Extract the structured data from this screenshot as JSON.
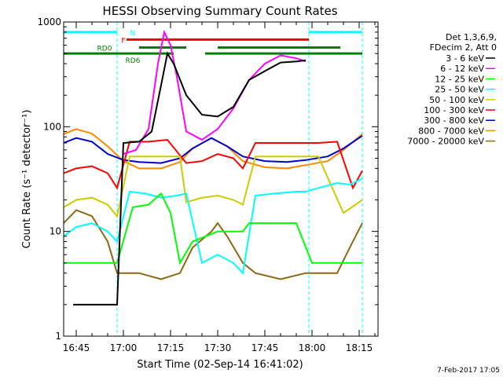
{
  "chart_data": {
    "type": "line",
    "title": "HESSI Observing Summary Count Rates",
    "xlabel": "Start Time (02-Sep-14 16:41:02)",
    "ylabel": "Count Rate (s⁻¹ detector⁻¹)",
    "y_scale": "log",
    "ylim": [
      1,
      1000
    ],
    "xlim": [
      "16:41",
      "18:21"
    ],
    "x_ticks": [
      "16:45",
      "17:00",
      "17:15",
      "17:30",
      "17:45",
      "18:00",
      "18:15"
    ],
    "y_ticks": [
      "1",
      "10",
      "100",
      "1000"
    ],
    "grid": false,
    "legend_position": "right",
    "legend_header": [
      "Det 1,3,6,9,",
      "FDecim 2, Att 0"
    ],
    "footer_date": "7-Feb-2017 17:05",
    "series": [
      {
        "name": "3 - 6 keV",
        "color": "#000000",
        "x": [
          "16:44",
          "16:58",
          "17:00",
          "17:05",
          "17:09",
          "17:12",
          "17:14",
          "17:16",
          "17:20",
          "17:25",
          "17:30",
          "17:35",
          "17:40",
          "17:45",
          "17:50",
          "17:55",
          "17:58"
        ],
        "values": [
          2,
          2,
          70,
          72,
          90,
          250,
          500,
          400,
          200,
          130,
          125,
          155,
          280,
          340,
          410,
          420,
          430
        ]
      },
      {
        "name": "6 - 12 keV",
        "color": "#ff00ff",
        "x": [
          "17:00",
          "17:04",
          "17:08",
          "17:11",
          "17:13",
          "17:15",
          "17:17",
          "17:20",
          "17:25",
          "17:30",
          "17:35",
          "17:40",
          "17:45",
          "17:50",
          "17:55",
          "17:58"
        ],
        "values": [
          55,
          60,
          95,
          400,
          800,
          600,
          300,
          90,
          75,
          95,
          150,
          280,
          400,
          480,
          450,
          420
        ]
      },
      {
        "name": "12 - 25 keV",
        "color": "#00ff00",
        "x": [
          "16:41",
          "16:55",
          "16:58",
          "17:03",
          "17:08",
          "17:12",
          "17:15",
          "17:18",
          "17:22",
          "17:30",
          "17:38",
          "17:40",
          "17:45",
          "17:55",
          "18:00",
          "18:03",
          "18:08",
          "18:13",
          "18:16"
        ],
        "values": [
          5,
          5,
          5,
          17,
          18,
          23,
          15,
          5,
          8,
          10,
          10,
          12,
          12,
          12,
          5,
          5,
          5,
          5,
          5
        ]
      },
      {
        "name": "25 - 50 keV",
        "color": "#00ffff",
        "x": [
          "16:41",
          "16:45",
          "16:50",
          "16:55",
          "16:58",
          "17:02",
          "17:07",
          "17:12",
          "17:17",
          "17:20",
          "17:25",
          "17:30",
          "17:35",
          "17:38",
          "17:42",
          "17:48",
          "17:55",
          "17:58",
          "18:02",
          "18:08",
          "18:12",
          "18:16"
        ],
        "values": [
          9,
          11,
          12,
          10,
          8,
          24,
          23,
          21,
          22,
          23,
          5,
          6,
          5,
          4,
          22,
          23,
          24,
          24,
          26,
          29,
          28,
          32
        ]
      },
      {
        "name": "50 - 100 keV",
        "color": "#cccc00",
        "x": [
          "16:41",
          "16:45",
          "16:50",
          "16:55",
          "16:58",
          "17:02",
          "17:08",
          "17:14",
          "17:18",
          "17:20",
          "17:25",
          "17:30",
          "17:35",
          "17:38",
          "17:42",
          "17:50",
          "17:58",
          "18:02",
          "18:10",
          "18:16"
        ],
        "values": [
          17,
          20,
          21,
          18,
          14,
          52,
          52,
          52,
          52,
          19,
          21,
          22,
          20,
          18,
          52,
          52,
          52,
          52,
          15,
          20
        ]
      },
      {
        "name": "100 - 300 keV",
        "color": "#ff0000",
        "x": [
          "16:41",
          "16:45",
          "16:50",
          "16:55",
          "16:58",
          "17:02",
          "17:08",
          "17:14",
          "17:20",
          "17:25",
          "17:30",
          "17:35",
          "17:38",
          "17:42",
          "17:50",
          "17:58",
          "18:02",
          "18:08",
          "18:13",
          "18:16"
        ],
        "values": [
          36,
          40,
          42,
          36,
          26,
          72,
          72,
          75,
          45,
          47,
          55,
          50,
          40,
          70,
          70,
          70,
          70,
          72,
          26,
          38
        ]
      },
      {
        "name": "300 - 800 keV",
        "color": "#0000cc",
        "x": [
          "16:41",
          "16:45",
          "16:50",
          "16:55",
          "17:00",
          "17:05",
          "17:12",
          "17:18",
          "17:22",
          "17:28",
          "17:33",
          "17:38",
          "17:45",
          "17:52",
          "17:58",
          "18:05",
          "18:10",
          "18:16"
        ],
        "values": [
          70,
          78,
          72,
          55,
          48,
          46,
          45,
          50,
          62,
          78,
          65,
          52,
          47,
          46,
          48,
          52,
          62,
          82
        ]
      },
      {
        "name": "800 - 7000 keV",
        "color": "#ff8800",
        "x": [
          "16:41",
          "16:45",
          "16:50",
          "16:55",
          "17:00",
          "17:05",
          "17:12",
          "17:18",
          "17:22",
          "17:28",
          "17:33",
          "17:38",
          "17:45",
          "17:52",
          "17:58",
          "18:05",
          "18:10",
          "18:16"
        ],
        "values": [
          85,
          95,
          86,
          65,
          47,
          40,
          40,
          46,
          62,
          78,
          65,
          47,
          41,
          40,
          43,
          47,
          60,
          85
        ]
      },
      {
        "name": "7000 - 20000 keV",
        "color": "#8b6914",
        "x": [
          "16:41",
          "16:45",
          "16:50",
          "16:55",
          "16:58",
          "17:05",
          "17:12",
          "17:18",
          "17:22",
          "17:28",
          "17:30",
          "17:33",
          "17:38",
          "17:42",
          "17:50",
          "17:58",
          "18:02",
          "18:08",
          "18:12",
          "18:16"
        ],
        "values": [
          12,
          16,
          14,
          8,
          4,
          4,
          3.5,
          4,
          7,
          10,
          12,
          9,
          5,
          4,
          3.5,
          4,
          4,
          4,
          7,
          12
        ]
      }
    ],
    "status_bars": [
      {
        "label": "N",
        "color": "#00ffff",
        "level": 800,
        "x_ranges": [
          [
            "16:41",
            "16:58"
          ],
          [
            "17:59",
            "18:16"
          ]
        ]
      },
      {
        "label": "F",
        "color": "#ff0000",
        "level": 680,
        "x_ranges": [
          [
            "17:01",
            "17:59"
          ]
        ]
      },
      {
        "label": "RD0",
        "color": "#008000",
        "level": 570,
        "x_ranges": [
          [
            "17:05",
            "17:20"
          ],
          [
            "17:30",
            "18:09"
          ]
        ]
      },
      {
        "label": "RD6",
        "color": "#008000",
        "level": 500,
        "x_ranges": [
          [
            "16:41",
            "17:16"
          ],
          [
            "17:26",
            "18:16"
          ]
        ]
      }
    ],
    "night_boundaries": [
      "16:58",
      "17:59",
      "18:16"
    ]
  }
}
